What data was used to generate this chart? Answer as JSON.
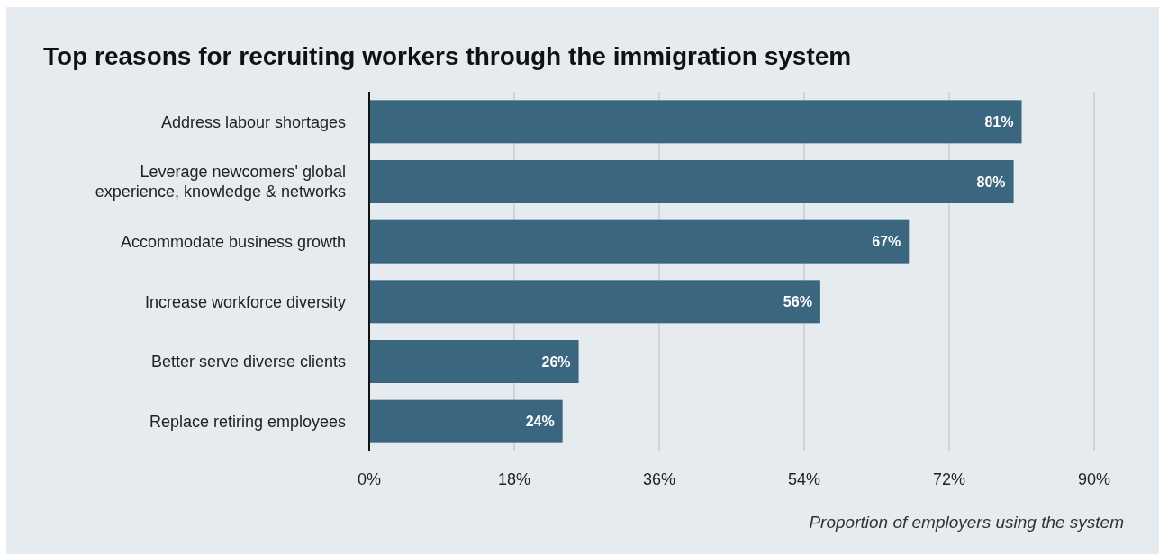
{
  "chart_data": {
    "type": "bar",
    "orientation": "horizontal",
    "title": "Top reasons for recruiting workers through the immigration system",
    "xlabel": "Proportion of employers using the system",
    "categories": [
      "Address labour shortages",
      "Leverage newcomers' global experience, knowledge & networks",
      "Accommodate business growth",
      "Increase workforce diversity",
      "Better serve diverse clients",
      "Replace retiring employees"
    ],
    "values": [
      81,
      80,
      67,
      56,
      26,
      24
    ],
    "value_labels": [
      "81%",
      "80%",
      "67%",
      "56%",
      "26%",
      "24%"
    ],
    "color": "#3a6680",
    "xlim": [
      0,
      90
    ],
    "xticks": [
      {
        "value": 0,
        "label": "0%"
      },
      {
        "value": 18,
        "label": "18%"
      },
      {
        "value": 36,
        "label": "36%"
      },
      {
        "value": 54,
        "label": "54%"
      },
      {
        "value": 72,
        "label": "72%"
      },
      {
        "value": 90,
        "label": "90%"
      }
    ],
    "grid": "x"
  }
}
